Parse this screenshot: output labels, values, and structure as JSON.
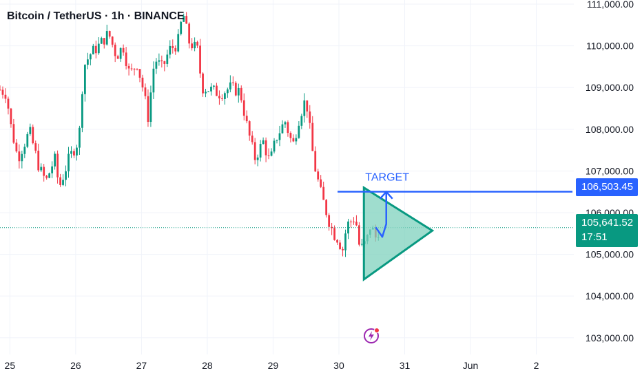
{
  "header": {
    "title": "Bitcoin / TetherUS · 1h · BINANCE"
  },
  "colors": {
    "up": "#089981",
    "down": "#f23645",
    "grid": "#f0f3fa",
    "axis_text": "#131722",
    "accent": "#2962ff",
    "pattern_fill": "#7fd1bd",
    "pattern_stroke": "#089981"
  },
  "annotations": {
    "target_label": "TARGET"
  },
  "price_tags": {
    "target": "106,503.45",
    "current": "105,641.52",
    "countdown": "17:51"
  },
  "icons": {
    "badge": "lightning-icon"
  },
  "chart_data": {
    "type": "candlestick",
    "title": "Bitcoin / TetherUS · 1h · BINANCE",
    "ylim": [
      102600,
      111100
    ],
    "y_ticks": [
      103000,
      104000,
      105000,
      106000,
      107000,
      108000,
      109000,
      110000,
      111000
    ],
    "y_tick_labels": [
      "103,000.00",
      "104,000.00",
      "105,000.00",
      "106,000.00",
      "107,000.00",
      "108,000.00",
      "109,000.00",
      "110,000.00",
      "111,000.00"
    ],
    "x_ticks": [
      "25",
      "26",
      "27",
      "28",
      "29",
      "30",
      "31",
      "Jun",
      "2"
    ],
    "x_start_day": 24.85,
    "days_shown": 8.72,
    "current_price": 105641.52,
    "target_price": 106503.45,
    "grid": true,
    "candle_keypoints": [
      [
        24.85,
        108950
      ],
      [
        24.95,
        108850
      ],
      [
        25.0,
        108200
      ],
      [
        25.12,
        107300
      ],
      [
        25.3,
        107950
      ],
      [
        25.45,
        107050
      ],
      [
        25.55,
        106750
      ],
      [
        25.68,
        107300
      ],
      [
        25.75,
        106600
      ],
      [
        25.9,
        107300
      ],
      [
        26.05,
        107750
      ],
      [
        26.12,
        109500
      ],
      [
        26.22,
        109800
      ],
      [
        26.35,
        110000
      ],
      [
        26.5,
        110300
      ],
      [
        26.62,
        109750
      ],
      [
        26.72,
        110000
      ],
      [
        26.82,
        109300
      ],
      [
        26.93,
        109600
      ],
      [
        27.02,
        109000
      ],
      [
        27.1,
        108300
      ],
      [
        27.2,
        109700
      ],
      [
        27.32,
        109450
      ],
      [
        27.42,
        109900
      ],
      [
        27.55,
        110050
      ],
      [
        27.63,
        110800
      ],
      [
        27.72,
        110100
      ],
      [
        27.85,
        109900
      ],
      [
        27.92,
        109000
      ],
      [
        28.05,
        108950
      ],
      [
        28.2,
        108850
      ],
      [
        28.35,
        109000
      ],
      [
        28.5,
        108900
      ],
      [
        28.6,
        108100
      ],
      [
        28.72,
        107300
      ],
      [
        28.85,
        107700
      ],
      [
        28.95,
        107200
      ],
      [
        29.05,
        107800
      ],
      [
        29.18,
        108200
      ],
      [
        29.3,
        107600
      ],
      [
        29.4,
        108300
      ],
      [
        29.5,
        108750
      ],
      [
        29.55,
        108100
      ],
      [
        29.62,
        107200
      ],
      [
        29.72,
        106500
      ],
      [
        29.85,
        105800
      ],
      [
        29.92,
        105500
      ],
      [
        30.0,
        105350
      ],
      [
        30.05,
        105050
      ],
      [
        30.12,
        105700
      ],
      [
        30.25,
        105900
      ],
      [
        30.32,
        105100
      ],
      [
        30.42,
        105300
      ],
      [
        30.48,
        105700
      ],
      [
        30.56,
        105400
      ],
      [
        30.62,
        105650
      ]
    ],
    "target_line": {
      "from_day": 29.98,
      "to_day": 33.55,
      "price": 106503.45
    },
    "triangle_pattern": {
      "points": [
        [
          30.38,
          106600
        ],
        [
          31.42,
          105570
        ],
        [
          30.38,
          104400
        ]
      ],
      "label": "TARGET"
    },
    "arrow": {
      "points": [
        [
          30.56,
          105650
        ],
        [
          30.66,
          105420
        ],
        [
          30.72,
          105730
        ],
        [
          30.72,
          106500
        ]
      ]
    }
  }
}
